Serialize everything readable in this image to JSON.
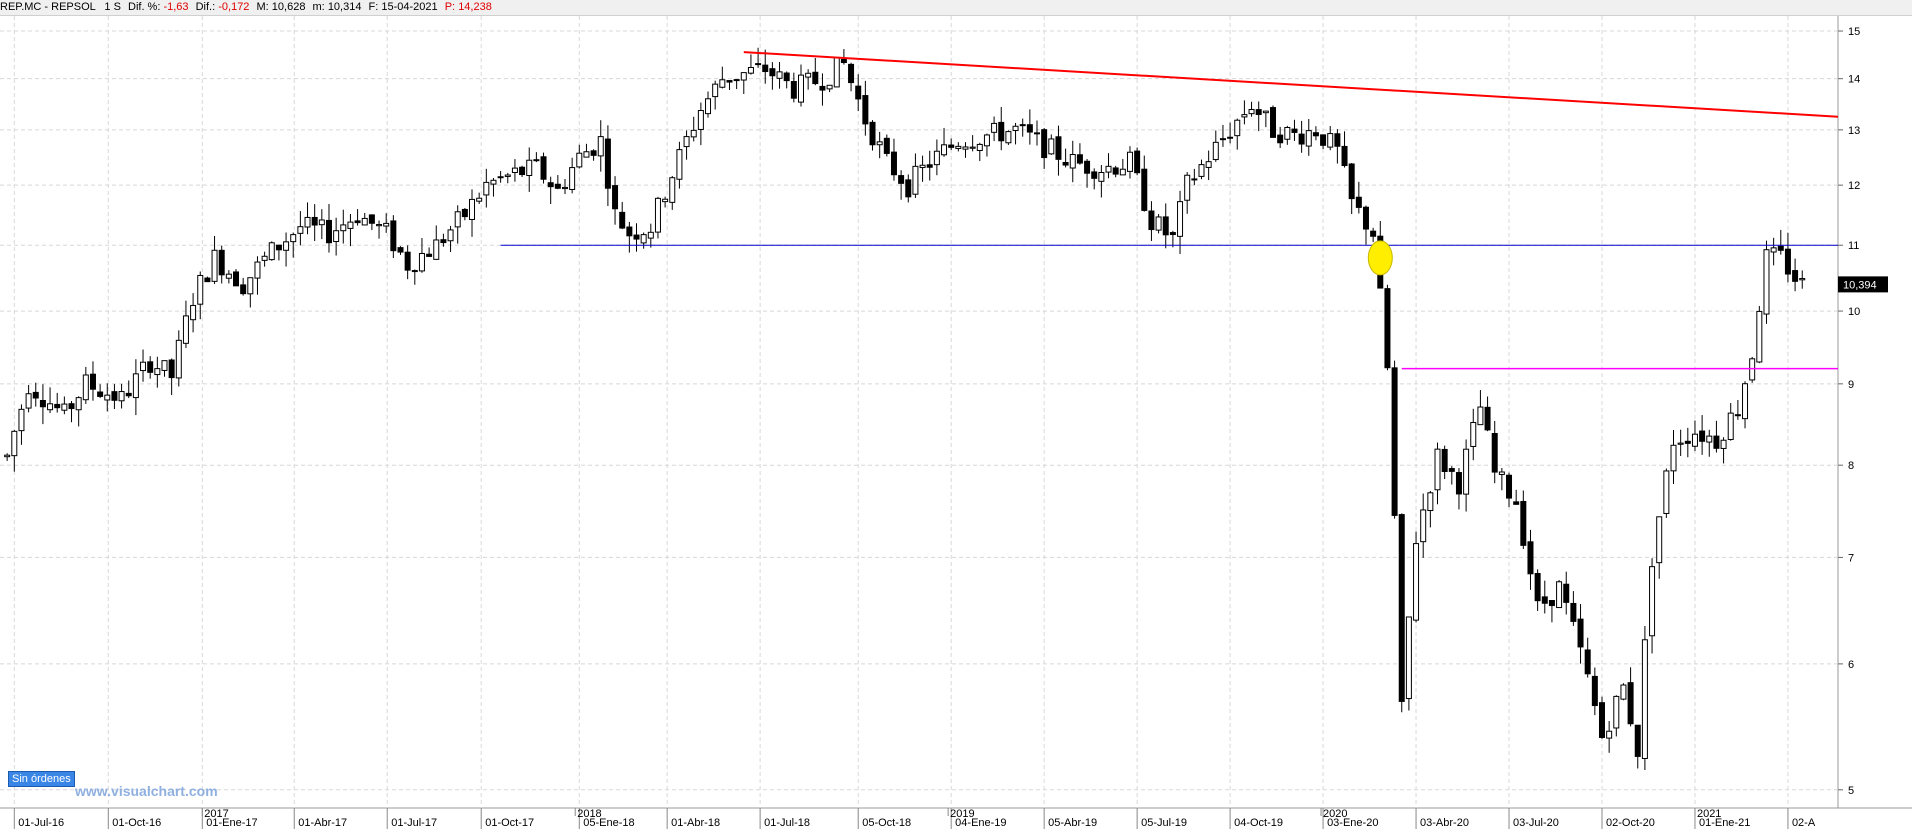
{
  "header": {
    "symbol": "REP.MC - REPSOL",
    "timeframe": "1 S",
    "dif_pct_label": "Dif. %:",
    "dif_pct_value": "-1,63",
    "dif_label": "Dif.:",
    "dif_value": "-0,172",
    "max_label": "M:",
    "max_value": "10,628",
    "min_label": "m:",
    "min_value": "10,314",
    "date_label": "F:",
    "date_value": "15-04-2021",
    "price_label": "P:",
    "price_value": "14,238"
  },
  "badge": "Sin órdenes",
  "watermark": "www.visualchart.com",
  "colors": {
    "up_fill": "#ffffff",
    "down_fill": "#000000",
    "candle_line": "#000000",
    "resistance": "#ff0000",
    "support": "#0000cc",
    "level": "#ff00ff",
    "highlight": "#ffee00",
    "grid": "#d8d8d8"
  },
  "chart_data": {
    "type": "candlestick",
    "title": "",
    "y_ticks": [
      "15",
      "14",
      "13",
      "12",
      "11",
      "10",
      "9",
      "8",
      "7",
      "6",
      "5"
    ],
    "ylim": [
      4.8,
      15.2
    ],
    "last_price": "10,394",
    "year_labels": [
      {
        "label": "2017",
        "date": "2017-01-01"
      },
      {
        "label": "2018",
        "date": "2018-01-01"
      },
      {
        "label": "2019",
        "date": "2019-01-01"
      },
      {
        "label": "2020",
        "date": "2020-01-01"
      },
      {
        "label": "2021",
        "date": "2021-01-01"
      }
    ],
    "x_ticks": [
      {
        "label": "01-Jul-16",
        "date": "2016-07-01"
      },
      {
        "label": "01-Oct-16",
        "date": "2016-10-01"
      },
      {
        "label": "01-Ene-17",
        "date": "2017-01-01"
      },
      {
        "label": "01-Abr-17",
        "date": "2017-04-01"
      },
      {
        "label": "01-Jul-17",
        "date": "2017-07-01"
      },
      {
        "label": "01-Oct-17",
        "date": "2017-10-01"
      },
      {
        "label": "05-Ene-18",
        "date": "2018-01-05"
      },
      {
        "label": "01-Abr-18",
        "date": "2018-04-01"
      },
      {
        "label": "01-Jul-18",
        "date": "2018-07-01"
      },
      {
        "label": "05-Oct-18",
        "date": "2018-10-05"
      },
      {
        "label": "04-Ene-19",
        "date": "2019-01-04"
      },
      {
        "label": "05-Abr-19",
        "date": "2019-04-05"
      },
      {
        "label": "05-Jul-19",
        "date": "2019-07-05"
      },
      {
        "label": "04-Oct-19",
        "date": "2019-10-04"
      },
      {
        "label": "03-Ene-20",
        "date": "2020-01-03"
      },
      {
        "label": "03-Abr-20",
        "date": "2020-04-03"
      },
      {
        "label": "03-Jul-20",
        "date": "2020-07-03"
      },
      {
        "label": "02-Oct-20",
        "date": "2020-10-02"
      },
      {
        "label": "01-Ene-21",
        "date": "2021-01-01"
      },
      {
        "label": "02-A",
        "date": "2021-04-02"
      }
    ],
    "anchors": [
      [
        "2016-06-24",
        8.1
      ],
      [
        "2016-07-15",
        9.0
      ],
      [
        "2016-08-19",
        8.6
      ],
      [
        "2016-09-09",
        9.0
      ],
      [
        "2016-10-14",
        8.8
      ],
      [
        "2016-11-11",
        9.3
      ],
      [
        "2016-12-02",
        9.1
      ],
      [
        "2016-12-23",
        10.2
      ],
      [
        "2017-01-13",
        10.8
      ],
      [
        "2017-02-10",
        10.4
      ],
      [
        "2017-03-10",
        10.9
      ],
      [
        "2017-04-07",
        11.3
      ],
      [
        "2017-05-05",
        11.2
      ],
      [
        "2017-06-02",
        11.5
      ],
      [
        "2017-06-30",
        11.2
      ],
      [
        "2017-07-21",
        10.7
      ],
      [
        "2017-08-18",
        11.0
      ],
      [
        "2017-09-15",
        11.5
      ],
      [
        "2017-10-06",
        12.0
      ],
      [
        "2017-11-03",
        12.2
      ],
      [
        "2017-11-24",
        12.3
      ],
      [
        "2017-12-15",
        11.9
      ],
      [
        "2018-01-05",
        12.5
      ],
      [
        "2018-01-26",
        12.8
      ],
      [
        "2018-02-09",
        11.5
      ],
      [
        "2018-02-23",
        11.2
      ],
      [
        "2018-03-16",
        11.3
      ],
      [
        "2018-04-06",
        12.2
      ],
      [
        "2018-05-04",
        13.4
      ],
      [
        "2018-05-25",
        14.0
      ],
      [
        "2018-06-15",
        14.1
      ],
      [
        "2018-07-06",
        14.2
      ],
      [
        "2018-08-03",
        13.8
      ],
      [
        "2018-08-31",
        14.0
      ],
      [
        "2018-09-21",
        14.3
      ],
      [
        "2018-10-12",
        13.2
      ],
      [
        "2018-11-02",
        12.4
      ],
      [
        "2018-11-23",
        12.0
      ],
      [
        "2018-12-14",
        12.4
      ],
      [
        "2019-01-11",
        12.8
      ],
      [
        "2019-02-08",
        12.9
      ],
      [
        "2019-03-08",
        13.0
      ],
      [
        "2019-04-05",
        12.7
      ],
      [
        "2019-05-03",
        12.4
      ],
      [
        "2019-05-31",
        12.3
      ],
      [
        "2019-06-28",
        12.4
      ],
      [
        "2019-07-19",
        11.4
      ],
      [
        "2019-08-09",
        11.1
      ],
      [
        "2019-08-23",
        12.0
      ],
      [
        "2019-09-13",
        12.5
      ],
      [
        "2019-10-04",
        13.0
      ],
      [
        "2019-10-25",
        13.5
      ],
      [
        "2019-11-15",
        13.0
      ],
      [
        "2019-12-06",
        12.9
      ],
      [
        "2019-12-27",
        13.0
      ],
      [
        "2020-01-17",
        12.6
      ],
      [
        "2020-01-31",
        11.7
      ],
      [
        "2020-02-21",
        11.2
      ],
      [
        "2020-03-06",
        9.2
      ],
      [
        "2020-03-20",
        5.6
      ],
      [
        "2020-04-03",
        7.2
      ],
      [
        "2020-04-24",
        8.1
      ],
      [
        "2020-05-15",
        7.8
      ],
      [
        "2020-06-05",
        8.7
      ],
      [
        "2020-06-19",
        7.9
      ],
      [
        "2020-07-10",
        7.6
      ],
      [
        "2020-07-31",
        6.5
      ],
      [
        "2020-08-21",
        6.7
      ],
      [
        "2020-09-11",
        6.1
      ],
      [
        "2020-10-02",
        5.4
      ],
      [
        "2020-10-23",
        5.8
      ],
      [
        "2020-11-06",
        5.3
      ],
      [
        "2020-11-20",
        7.0
      ],
      [
        "2020-12-11",
        8.3
      ],
      [
        "2021-01-01",
        8.4
      ],
      [
        "2021-01-22",
        8.3
      ],
      [
        "2021-02-12",
        8.7
      ],
      [
        "2021-02-26",
        9.4
      ],
      [
        "2021-03-12",
        10.8
      ],
      [
        "2021-03-26",
        10.8
      ],
      [
        "2021-04-09",
        10.5
      ],
      [
        "2021-04-16",
        10.39
      ]
    ],
    "resistance_line": {
      "from": {
        "date": "2018-06-15",
        "value": 14.55
      },
      "to": {
        "date": "2021-05-21",
        "value": 13.25
      }
    },
    "support_line": {
      "from": {
        "date": "2017-10-20",
        "value": 11.0
      },
      "to": {
        "date": "2021-05-21",
        "value": 11.0
      }
    },
    "level_line": {
      "from": {
        "date": "2020-03-20",
        "value": 9.2
      },
      "to": {
        "date": "2021-05-21",
        "value": 9.2
      }
    },
    "highlight": {
      "date": "2020-02-28",
      "value": 10.8
    }
  }
}
